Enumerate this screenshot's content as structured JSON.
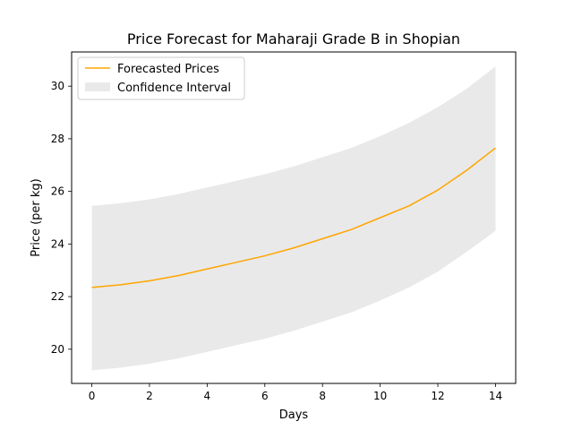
{
  "chart_data": {
    "type": "line",
    "title": "Price Forecast for Maharaji Grade B in Shopian",
    "xlabel": "Days",
    "ylabel": "Price (per kg)",
    "xlim": [
      -0.7,
      14.7
    ],
    "ylim": [
      18.7,
      31.3
    ],
    "x_ticks": [
      0,
      2,
      4,
      6,
      8,
      10,
      12,
      14
    ],
    "y_ticks": [
      20,
      22,
      24,
      26,
      28,
      30
    ],
    "grid": false,
    "legend_position": "upper left",
    "x": [
      0,
      1,
      2,
      3,
      4,
      5,
      6,
      7,
      8,
      9,
      10,
      11,
      12,
      13,
      14
    ],
    "series": [
      {
        "name": "Forecasted Prices",
        "type": "line",
        "color": "#ffa500",
        "values": [
          22.35,
          22.45,
          22.6,
          22.8,
          23.05,
          23.3,
          23.55,
          23.85,
          24.2,
          24.55,
          25.0,
          25.45,
          26.05,
          26.8,
          27.65
        ]
      },
      {
        "name": "Confidence Interval",
        "type": "band",
        "color": "#d3d3d3",
        "lower": [
          19.2,
          19.3,
          19.45,
          19.65,
          19.9,
          20.15,
          20.4,
          20.7,
          21.05,
          21.4,
          21.85,
          22.35,
          22.95,
          23.7,
          24.5
        ],
        "upper": [
          25.45,
          25.55,
          25.7,
          25.9,
          26.15,
          26.4,
          26.65,
          26.95,
          27.3,
          27.65,
          28.1,
          28.6,
          29.2,
          29.9,
          30.75
        ]
      }
    ]
  }
}
